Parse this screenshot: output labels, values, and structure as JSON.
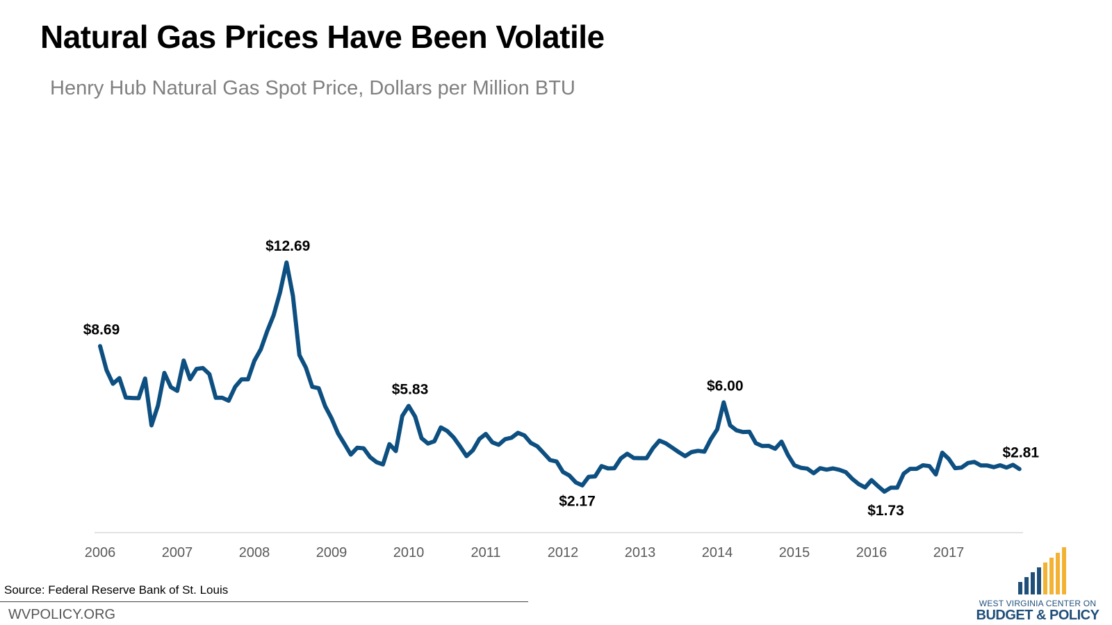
{
  "title": "Natural Gas Prices Have Been Volatile",
  "subtitle": "Henry Hub Natural Gas Spot Price, Dollars per Million BTU",
  "footer": {
    "source": "Source: Federal Reserve Bank of St. Louis",
    "site": "WVPOLICY.ORG"
  },
  "logo": {
    "line1": "WEST VIRGINIA CENTER ON",
    "line2": "BUDGET & POLICY"
  },
  "colors": {
    "line": "#0d4f80",
    "axis": "#d9d9d9",
    "logo_blue": "#1f4e79",
    "logo_gold": "#f2b233"
  },
  "chart_data": {
    "type": "line",
    "title": "Natural Gas Prices Have Been Volatile",
    "subtitle": "Henry Hub Natural Gas Spot Price, Dollars per Million BTU",
    "xlabel": "",
    "ylabel": "",
    "x_start": "2006-01",
    "x_frequency": "monthly",
    "x_ticks": [
      "2006",
      "2007",
      "2008",
      "2009",
      "2010",
      "2011",
      "2012",
      "2013",
      "2014",
      "2015",
      "2016",
      "2017"
    ],
    "ylim": [
      0,
      13
    ],
    "grid": false,
    "legend": "none",
    "series": [
      {
        "values": [
          8.69,
          7.54,
          6.89,
          7.16,
          6.23,
          6.21,
          6.2,
          7.14,
          4.9,
          5.85,
          7.41,
          6.73,
          6.55,
          8.0,
          7.11,
          7.6,
          7.64,
          7.35,
          6.22,
          6.22,
          6.08,
          6.74,
          7.1,
          7.1,
          7.99,
          8.54,
          9.41,
          10.18,
          11.27,
          12.69,
          11.09,
          8.26,
          7.67,
          6.74,
          6.68,
          5.82,
          5.24,
          4.52,
          4.02,
          3.5,
          3.83,
          3.8,
          3.38,
          3.14,
          3.03,
          4.0,
          3.67,
          5.35,
          5.83,
          5.32,
          4.29,
          4.03,
          4.14,
          4.8,
          4.63,
          4.32,
          3.89,
          3.43,
          3.71,
          4.25,
          4.49,
          4.09,
          3.97,
          4.24,
          4.31,
          4.54,
          4.42,
          4.06,
          3.9,
          3.57,
          3.24,
          3.17,
          2.67,
          2.5,
          2.17,
          2.03,
          2.44,
          2.46,
          2.95,
          2.84,
          2.85,
          3.32,
          3.54,
          3.34,
          3.33,
          3.33,
          3.81,
          4.17,
          4.04,
          3.83,
          3.62,
          3.43,
          3.62,
          3.68,
          3.64,
          4.24,
          4.71,
          6.0,
          4.9,
          4.66,
          4.58,
          4.59,
          4.05,
          3.91,
          3.92,
          3.78,
          4.12,
          3.48,
          2.99,
          2.87,
          2.83,
          2.61,
          2.85,
          2.78,
          2.84,
          2.77,
          2.66,
          2.34,
          2.09,
          1.93,
          2.28,
          1.99,
          1.73,
          1.92,
          1.92,
          2.59,
          2.82,
          2.82,
          2.99,
          2.95,
          2.55,
          3.59,
          3.3,
          2.85,
          2.88,
          3.1,
          3.15,
          2.98,
          2.98,
          2.9,
          2.99,
          2.88,
          3.01,
          2.81
        ]
      }
    ],
    "annotations": [
      {
        "label": "$8.69",
        "date": "2006-01",
        "value": 8.69,
        "position": "above"
      },
      {
        "label": "$12.69",
        "date": "2008-06",
        "value": 12.69,
        "position": "above"
      },
      {
        "label": "$5.83",
        "date": "2010-01",
        "value": 5.83,
        "position": "above"
      },
      {
        "label": "$2.17",
        "date": "2012-03",
        "value": 2.17,
        "position": "below"
      },
      {
        "label": "$6.00",
        "date": "2014-02",
        "value": 6.0,
        "position": "above"
      },
      {
        "label": "$1.73",
        "date": "2016-03",
        "value": 1.73,
        "position": "below"
      },
      {
        "label": "$2.81",
        "date": "2017-12",
        "value": 2.81,
        "position": "above"
      }
    ]
  }
}
